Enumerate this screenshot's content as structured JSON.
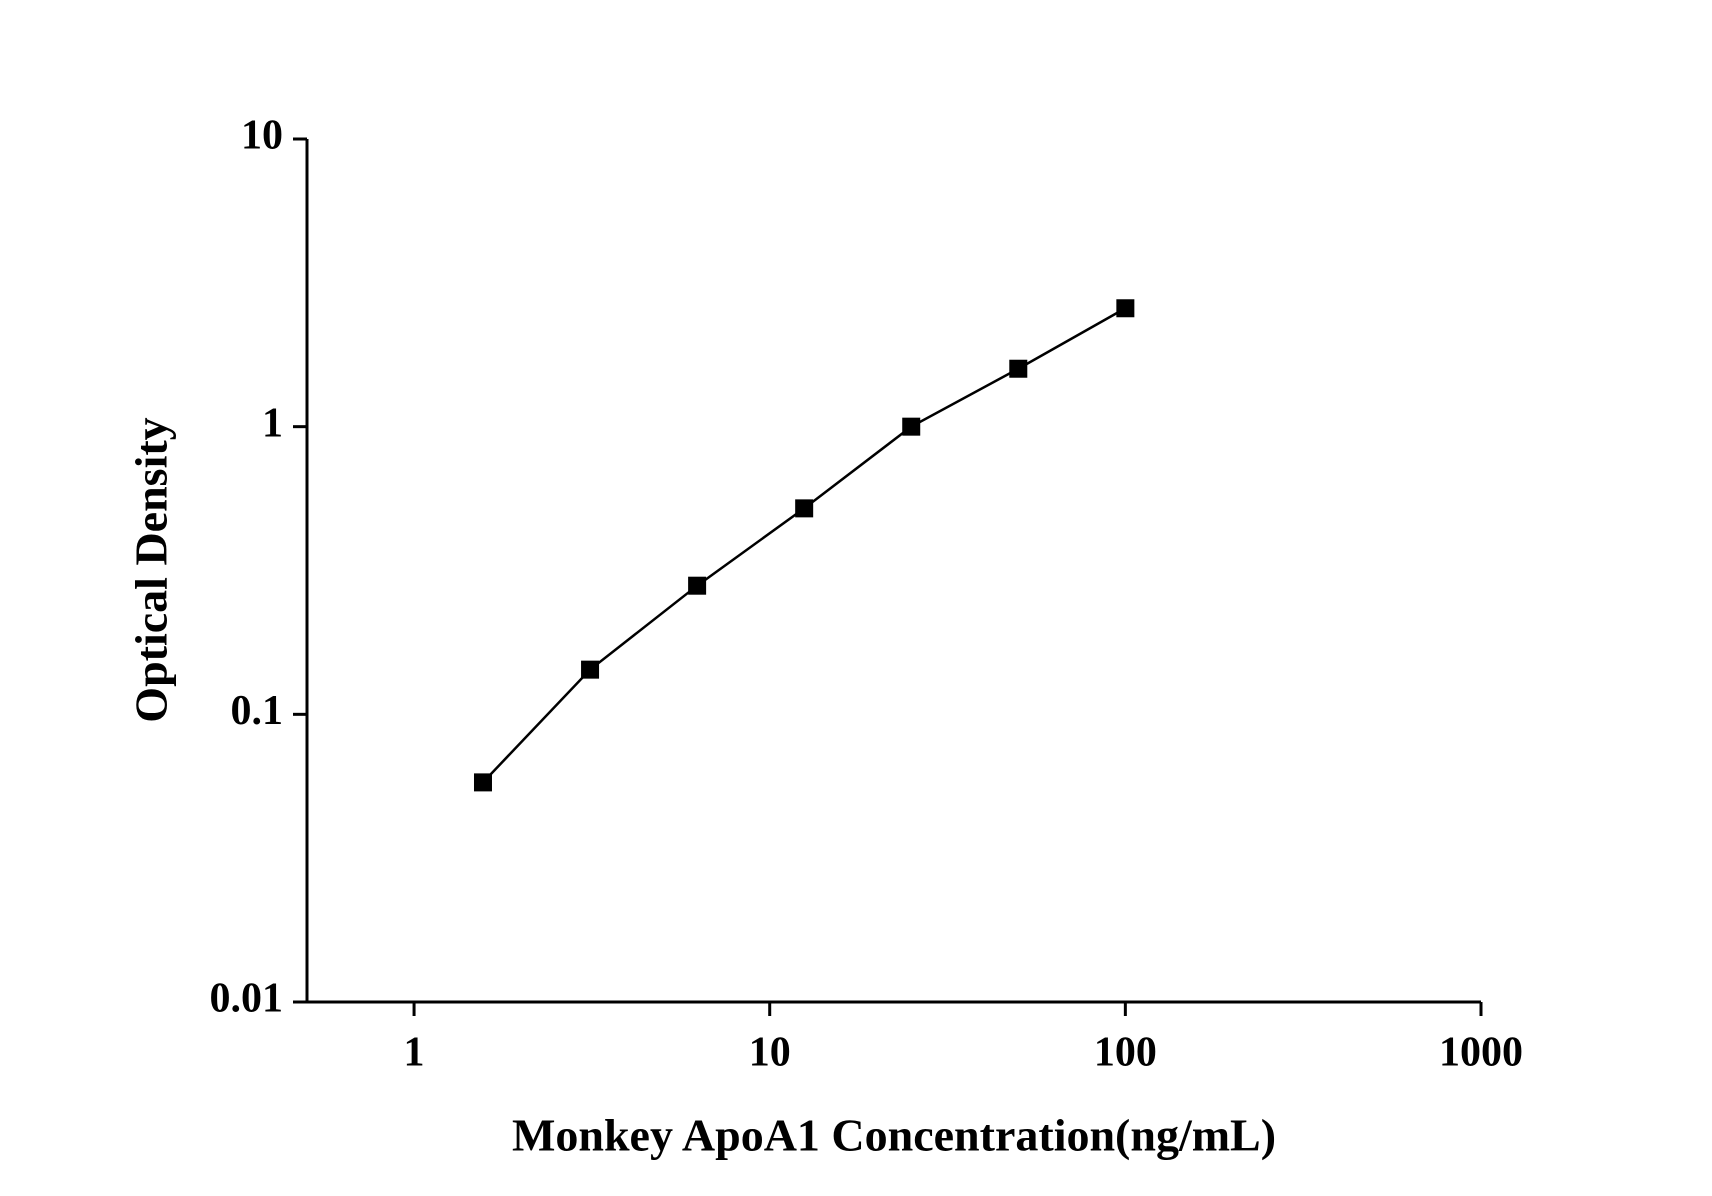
{
  "chart_data": {
    "type": "line",
    "x_label": "Monkey ApoA1 Concentration(ng/mL)",
    "y_label": "Optical Density",
    "x": [
      1.5625,
      3.125,
      6.25,
      12.5,
      25,
      50,
      100
    ],
    "series": [
      {
        "color": "#000000",
        "values": [
          0.058,
          0.143,
          0.28,
          0.52,
          1.0,
          1.59,
          2.58
        ]
      }
    ],
    "xscale": "log",
    "yscale": "log",
    "xlim": [
      0.5,
      1000
    ],
    "ylim": [
      0.01,
      10
    ],
    "xticks": [
      1,
      10,
      100,
      1000
    ],
    "yticks": [
      0.01,
      0.1,
      1,
      10
    ],
    "marker": "square"
  }
}
